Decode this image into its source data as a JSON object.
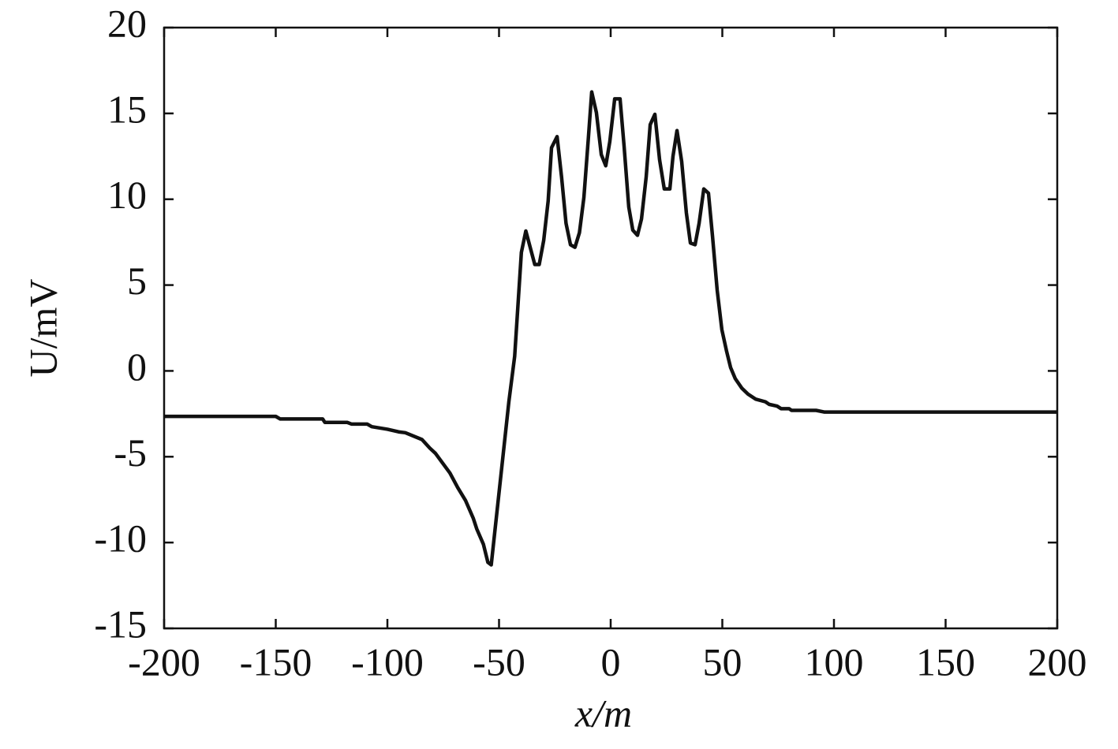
{
  "chart_data": {
    "type": "line",
    "xlabel": "x/m",
    "ylabel": "U/mV",
    "color": "#111111",
    "xlim": [
      -200,
      200
    ],
    "xticks": [
      -200,
      -150,
      -100,
      -50,
      0,
      50,
      100,
      150,
      200
    ],
    "ylim": [
      -15,
      20
    ],
    "yticks": [
      -15,
      -10,
      -5,
      0,
      5,
      10,
      15,
      20
    ],
    "grid": false,
    "x": [
      -200,
      -150,
      -148,
      -129,
      -128,
      -118,
      -116,
      -109,
      -107,
      -100,
      -95,
      -92,
      -84.5,
      -81,
      -78.5,
      -72,
      -68.5,
      -65,
      -61.5,
      -60,
      -57,
      -55,
      -53.5,
      -45.6,
      -43,
      -40,
      -38,
      -34,
      -32,
      -30,
      -28,
      -26.5,
      -24,
      -22,
      -20,
      -18,
      -16,
      -14,
      -12,
      -10,
      -8.5,
      -6.4,
      -4.2,
      -2.2,
      -0.4,
      1.8,
      4.2,
      6,
      8.1,
      9.9,
      12,
      13.8,
      15.9,
      17.7,
      19.8,
      21.9,
      24,
      26.5,
      27.9,
      29.7,
      31.8,
      33.9,
      35.7,
      37.8,
      39.6,
      41.7,
      43.8,
      45.6,
      47.7,
      49.8,
      51.9,
      53.7,
      55.8,
      58.7,
      61.5,
      65,
      69.3,
      71,
      74.5,
      76.3,
      79.9,
      81,
      92,
      95.8,
      200
    ],
    "values": [
      -2.65,
      -2.65,
      -2.8,
      -2.8,
      -3.0,
      -3.0,
      -3.1,
      -3.1,
      -3.25,
      -3.4,
      -3.55,
      -3.6,
      -4.0,
      -4.5,
      -4.8,
      -5.95,
      -6.8,
      -7.55,
      -8.6,
      -9.2,
      -10.1,
      -11.15,
      -11.3,
      -1.8,
      0.85,
      6.9,
      8.15,
      6.2,
      6.2,
      7.6,
      9.9,
      13.0,
      13.65,
      11.3,
      8.6,
      7.35,
      7.2,
      8.05,
      10.1,
      13.55,
      16.25,
      15.05,
      12.6,
      11.95,
      13.35,
      15.85,
      15.85,
      13.1,
      9.55,
      8.2,
      7.9,
      8.85,
      11.3,
      14.35,
      14.95,
      12.3,
      10.6,
      10.6,
      12.5,
      14.0,
      12.2,
      9.2,
      7.45,
      7.35,
      8.6,
      10.6,
      10.35,
      7.85,
      4.7,
      2.4,
      1.15,
      0.2,
      -0.45,
      -1.0,
      -1.35,
      -1.65,
      -1.8,
      -1.95,
      -2.05,
      -2.2,
      -2.2,
      -2.3,
      -2.3,
      -2.4,
      -2.4
    ]
  }
}
